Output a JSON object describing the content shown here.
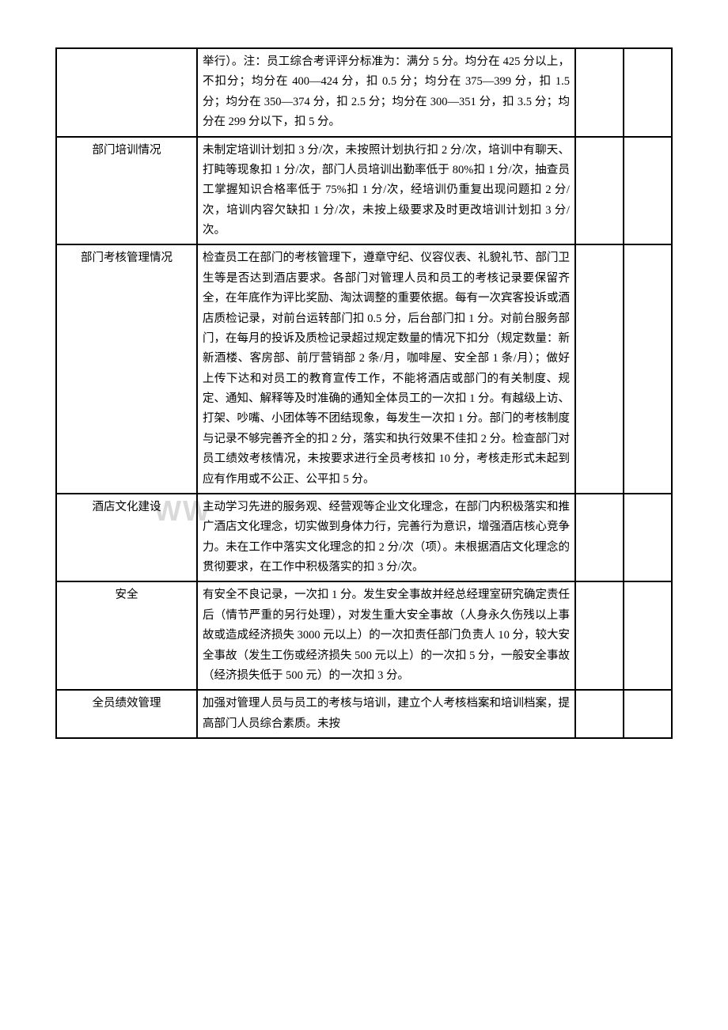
{
  "watermark": "WW",
  "rows": [
    {
      "label": "",
      "content": "举行）。注：员工综合考评评分标准为：满分 5 分。均分在 425 分以上，不扣分；均分在 400—424 分，扣 0.5 分；均分在 375—399 分，扣 1.5 分；均分在 350—374 分，扣 2.5 分；均分在 300—351 分，扣 3.5 分；均分在 299 分以下，扣 5 分。"
    },
    {
      "label": "部门培训情况",
      "content": "未制定培训计划扣 3 分/次，未按照计划执行扣 2 分/次，培训中有聊天、打盹等现象扣 1 分/次，部门人员培训出勤率低于 80%扣 1 分/次，抽查员工掌握知识合格率低于 75%扣 1 分/次，经培训仍重复出现问题扣 2 分/次，培训内容欠缺扣 1 分/次，未按上级要求及时更改培训计划扣 3 分/次。"
    },
    {
      "label": "部门考核管理情况",
      "content": "检查员工在部门的考核管理下，遵章守纪、仪容仪表、礼貌礼节、部门卫生等是否达到酒店要求。各部门对管理人员和员工的考核记录要保留齐全，在年底作为评比奖励、淘汰调整的重要依据。每有一次宾客投诉或酒店质检记录，对前台运转部门扣 0.5 分，后台部门扣 1 分。对前台服务部门，在每月的投诉及质检记录超过规定数量的情况下扣分（规定数量：新新酒楼、客房部、前厅营销部 2 条/月，咖啡屋、安全部 1 条/月）；做好上传下达和对员工的教育宣传工作，不能将酒店或部门的有关制度、规定、通知、解释等及时准确的通知全体员工的一次扣 1 分。有越级上访、打架、吵嘴、小团体等不团结现象，每发生一次扣 1 分。部门的考核制度与记录不够完善齐全的扣 2 分，落实和执行效果不佳扣 2 分。检查部门对员工绩效考核情况，未按要求进行全员考核扣 10 分，考核走形式未起到应有作用或不公正、公平扣 5 分。"
    },
    {
      "label": "酒店文化建设",
      "content": "主动学习先进的服务观、经营观等企业文化理念，在部门内积极落实和推广酒店文化理念，切实做到身体力行，完善行为意识，增强酒店核心竞争力。未在工作中落实文化理念的扣 2 分/次（项）。未根据酒店文化理念的贯彻要求，在工作中积极落实的扣 3 分/次。"
    },
    {
      "label": "安全",
      "content": "有安全不良记录，一次扣 1 分。发生安全事故并经总经理室研究确定责任后（情节严重的另行处理），对发生重大安全事故（人身永久伤残以上事故或造成经济损失 3000 元以上）的一次扣责任部门负责人 10 分，较大安全事故（发生工伤或经济损失 500 元以上）的一次扣 5 分，一般安全事故（经济损失低于 500 元）的一次扣 3 分。"
    },
    {
      "label": "全员绩效管理",
      "content": "加强对管理人员与员工的考核与培训，建立个人考核档案和培训档案，提高部门人员综合素质。未按"
    }
  ]
}
